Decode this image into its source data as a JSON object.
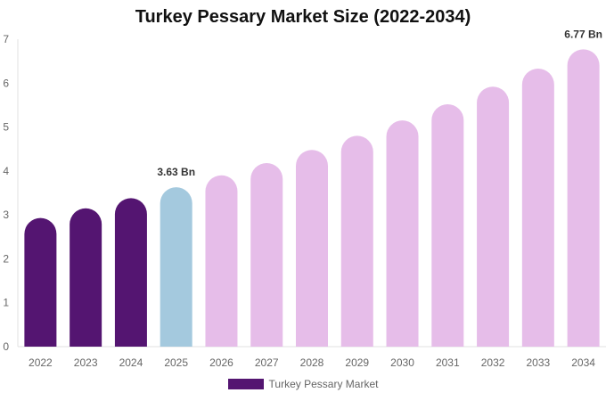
{
  "chart_data": {
    "type": "bar",
    "title": "Turkey Pessary Market Size (2022-2034)",
    "categories": [
      "2022",
      "2023",
      "2024",
      "2025",
      "2026",
      "2027",
      "2028",
      "2029",
      "2030",
      "2031",
      "2032",
      "2033",
      "2034"
    ],
    "series": [
      {
        "name": "Turkey Pessary Market",
        "values": [
          2.93,
          3.15,
          3.38,
          3.63,
          3.9,
          4.18,
          4.48,
          4.8,
          5.15,
          5.52,
          5.92,
          6.33,
          6.77
        ]
      }
    ],
    "data_labels": [
      {
        "category": "2025",
        "text": "3.63 Bn"
      },
      {
        "category": "2034",
        "text": "6.77 Bn"
      }
    ],
    "yticks": [
      "0",
      "1",
      "2",
      "3",
      "4",
      "5",
      "6",
      "7"
    ],
    "ylim": [
      0,
      7
    ],
    "xlabel": "",
    "ylabel": "",
    "grid": false,
    "legend_position": "bottom",
    "colors": {
      "historical": "#541571",
      "current": "#a4c9de",
      "forecast": "#e6bde9",
      "legend": "#541571"
    },
    "color_groups": [
      "historical",
      "historical",
      "historical",
      "current",
      "forecast",
      "forecast",
      "forecast",
      "forecast",
      "forecast",
      "forecast",
      "forecast",
      "forecast",
      "forecast"
    ]
  }
}
